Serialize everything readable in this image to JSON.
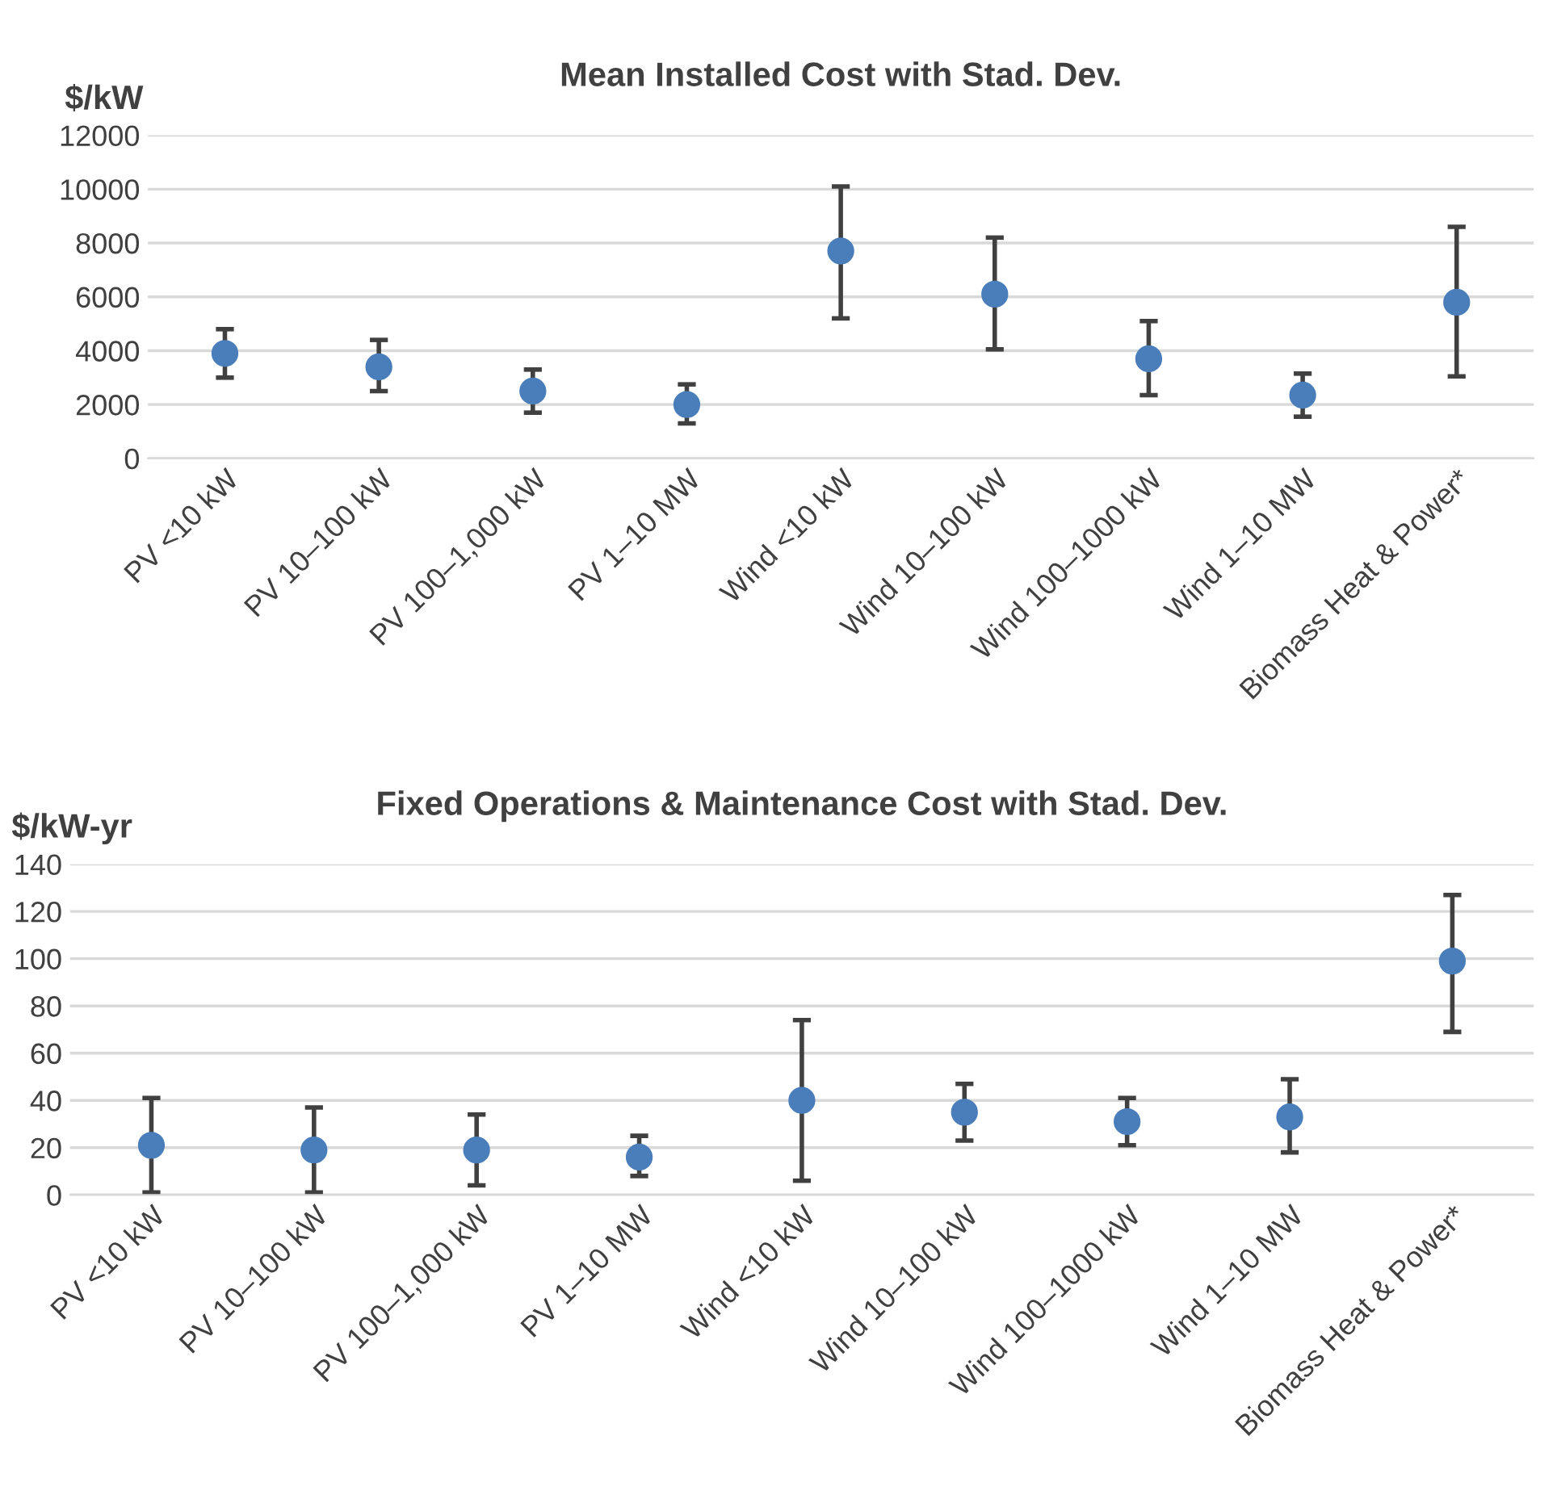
{
  "chart_data": [
    {
      "type": "scatter",
      "title": "Mean Installed Cost with Stad. Dev.",
      "ylabel": "$/kW",
      "categories": [
        "PV <10 kW",
        "PV 10–100 kW",
        "PV 100–1,000 kW",
        "PV 1–10 MW",
        "Wind <10 kW",
        "Wind 10–100 kW",
        "Wind 100–1000 kW",
        "Wind 1–10 MW",
        "Biomass Heat & Power*"
      ],
      "series": [
        {
          "color": "#4a7ebb",
          "values": [
            3900,
            3400,
            2500,
            2000,
            7700,
            6100,
            3700,
            2350,
            5800
          ],
          "errors": [
            [
              3000,
              4800
            ],
            [
              2500,
              4400
            ],
            [
              1700,
              3300
            ],
            [
              1300,
              2750
            ],
            [
              5200,
              10100
            ],
            [
              4050,
              8200
            ],
            [
              2350,
              5100
            ],
            [
              1550,
              3150
            ],
            [
              3050,
              8600
            ]
          ]
        }
      ],
      "ylim": [
        0,
        12000
      ],
      "yticks": [
        0,
        2000,
        4000,
        6000,
        8000,
        10000,
        12000
      ],
      "grid": "y",
      "marker": "circle",
      "legend": false
    },
    {
      "type": "scatter",
      "title": "Fixed Operations & Maintenance Cost with Stad. Dev.",
      "ylabel": "$/kW-yr",
      "categories": [
        "PV <10 kW",
        "PV 10–100 kW",
        "PV 100–1,000 kW",
        "PV 1–10 MW",
        "Wind <10 kW",
        "Wind 10–100 kW",
        "Wind 100–1000 kW",
        "Wind 1–10 MW",
        "Biomass Heat & Power*"
      ],
      "series": [
        {
          "color": "#4a7ebb",
          "values": [
            21,
            19,
            19,
            16,
            40,
            35,
            31,
            33,
            99
          ],
          "errors": [
            [
              1,
              41
            ],
            [
              1,
              37
            ],
            [
              4,
              34
            ],
            [
              8,
              25
            ],
            [
              6,
              74
            ],
            [
              23,
              47
            ],
            [
              21,
              41
            ],
            [
              18,
              49
            ],
            [
              69,
              127
            ]
          ]
        }
      ],
      "ylim": [
        0,
        140
      ],
      "yticks": [
        0,
        20,
        40,
        60,
        80,
        100,
        120,
        140
      ],
      "grid": "y",
      "marker": "circle",
      "legend": false
    }
  ]
}
